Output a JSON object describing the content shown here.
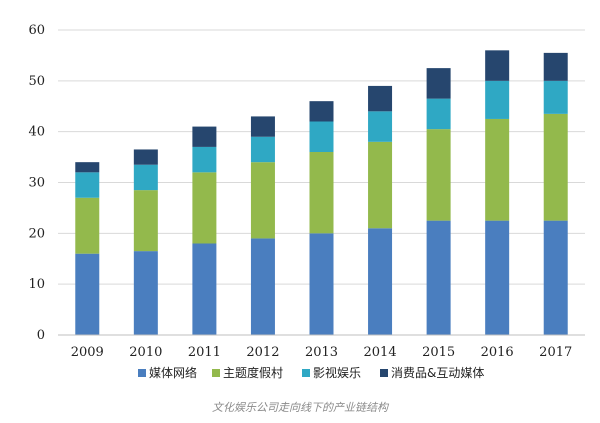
{
  "chart_data": {
    "type": "bar",
    "stacked": true,
    "categories": [
      "2009",
      "2010",
      "2011",
      "2012",
      "2013",
      "2014",
      "2015",
      "2016",
      "2017"
    ],
    "series": [
      {
        "name": "媒体网络",
        "color": "#4a7ebf",
        "values": [
          16,
          16.5,
          18,
          19,
          20,
          21,
          22.5,
          22.5,
          22.5
        ]
      },
      {
        "name": "主题度假村",
        "color": "#93b94c",
        "values": [
          11,
          12,
          14,
          15,
          16,
          17,
          18,
          20,
          21
        ]
      },
      {
        "name": "影视娱乐",
        "color": "#2fa8c4",
        "values": [
          5,
          5,
          5,
          5,
          6,
          6,
          6,
          7.5,
          6.5
        ]
      },
      {
        "name": "消费品&互动媒体",
        "color": "#26466e",
        "values": [
          2,
          3,
          4,
          4,
          4,
          5,
          6,
          6,
          5.5
        ]
      }
    ],
    "ylim": [
      0,
      60
    ],
    "yticks": [
      0,
      10,
      20,
      30,
      40,
      50,
      60
    ],
    "grid": true,
    "legend_position": "bottom"
  },
  "caption": "文化娱乐公司走向线下的产业链结构"
}
